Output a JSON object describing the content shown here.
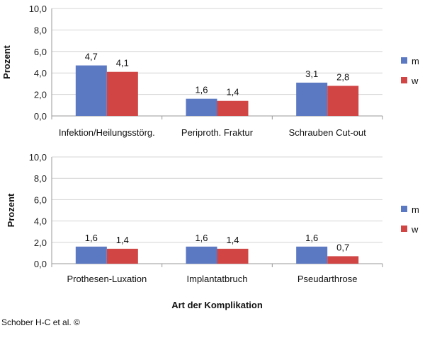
{
  "chart_data": [
    {
      "type": "bar",
      "categories": [
        "Infektion/Heilungsstörg.",
        "Periproth. Fraktur",
        "Schrauben Cut-out"
      ],
      "series": [
        {
          "name": "m",
          "values": [
            4.7,
            1.6,
            3.1
          ],
          "labels": [
            "4,7",
            "1,6",
            "3,1"
          ],
          "color": "#5b78c2"
        },
        {
          "name": "w",
          "values": [
            4.1,
            1.4,
            2.8
          ],
          "labels": [
            "4,1",
            "1,4",
            "2,8"
          ],
          "color": "#d14545"
        }
      ],
      "ylabel": "Prozent",
      "xlabel": "",
      "ylim": [
        0,
        10
      ],
      "yticks": [
        "0,0",
        "2,0",
        "4,0",
        "6,0",
        "8,0",
        "10,0"
      ],
      "grid": true,
      "legend": "right"
    },
    {
      "type": "bar",
      "categories": [
        "Prothesen-Luxation",
        "Implantatbruch",
        "Pseudarthrose"
      ],
      "series": [
        {
          "name": "m",
          "values": [
            1.6,
            1.6,
            1.6
          ],
          "labels": [
            "1,6",
            "1,6",
            "1,6"
          ],
          "color": "#5b78c2"
        },
        {
          "name": "w",
          "values": [
            1.4,
            1.4,
            0.7
          ],
          "labels": [
            "1,4",
            "1,4",
            "0,7"
          ],
          "color": "#d14545"
        }
      ],
      "ylabel": "Prozent",
      "xlabel": "Art der Komplikation",
      "ylim": [
        0,
        10
      ],
      "yticks": [
        "0,0",
        "2,0",
        "4,0",
        "6,0",
        "8,0",
        "10,0"
      ],
      "grid": true,
      "legend": "right"
    }
  ],
  "credit": "Schober H-C et al. ©"
}
